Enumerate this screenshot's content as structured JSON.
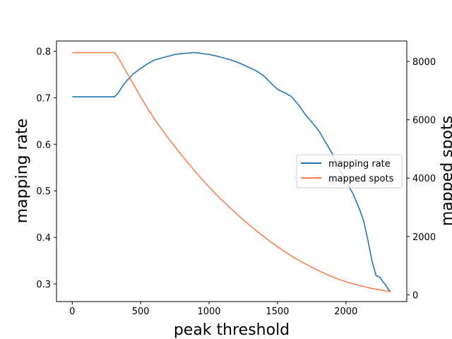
{
  "chart_data": {
    "type": "line",
    "title": "",
    "xlabel": "peak threshold",
    "ylabel": "mapping rate",
    "y2label": "mapped spots",
    "xlim": [
      -115,
      2445
    ],
    "ylim": [
      0.262,
      0.822
    ],
    "y2lim": [
      -230,
      8700
    ],
    "xticks": [
      0,
      500,
      1000,
      1500,
      2000
    ],
    "yticks": [
      0.3,
      0.4,
      0.5,
      0.6,
      0.7,
      0.8
    ],
    "y2ticks": [
      0,
      2000,
      4000,
      6000,
      8000
    ],
    "grid": false,
    "legend_position": "center-right",
    "series": [
      {
        "name": "mapping rate",
        "axis": "left",
        "color": "#1f77b4",
        "x": [
          0,
          100,
          200,
          300,
          310,
          340,
          370,
          400,
          450,
          500,
          550,
          600,
          650,
          700,
          750,
          800,
          850,
          900,
          950,
          1000,
          1050,
          1100,
          1150,
          1200,
          1250,
          1300,
          1350,
          1400,
          1450,
          1500,
          1550,
          1600,
          1650,
          1700,
          1750,
          1800,
          1850,
          1900,
          1950,
          2000,
          2050,
          2100,
          2130,
          2160,
          2190,
          2220,
          2250,
          2270,
          2290,
          2310,
          2325
        ],
        "y": [
          0.702,
          0.702,
          0.702,
          0.702,
          0.702,
          0.712,
          0.726,
          0.737,
          0.752,
          0.763,
          0.773,
          0.781,
          0.785,
          0.789,
          0.793,
          0.795,
          0.796,
          0.797,
          0.795,
          0.793,
          0.79,
          0.786,
          0.782,
          0.777,
          0.771,
          0.764,
          0.757,
          0.747,
          0.732,
          0.718,
          0.711,
          0.703,
          0.686,
          0.665,
          0.648,
          0.63,
          0.605,
          0.58,
          0.548,
          0.52,
          0.495,
          0.46,
          0.435,
          0.395,
          0.35,
          0.318,
          0.314,
          0.305,
          0.298,
          0.288,
          0.284
        ]
      },
      {
        "name": "mapped spots",
        "axis": "right",
        "color": "#ff7f50",
        "x": [
          0,
          100,
          200,
          300,
          310,
          340,
          370,
          400,
          450,
          500,
          550,
          600,
          650,
          700,
          750,
          800,
          850,
          900,
          950,
          1000,
          1050,
          1100,
          1150,
          1200,
          1250,
          1300,
          1350,
          1400,
          1450,
          1500,
          1550,
          1600,
          1650,
          1700,
          1750,
          1800,
          1850,
          1900,
          1950,
          2000,
          2050,
          2100,
          2150,
          2200,
          2250,
          2300,
          2325
        ],
        "y": [
          8300,
          8300,
          8300,
          8300,
          8300,
          8100,
          7850,
          7600,
          7200,
          6780,
          6400,
          6030,
          5700,
          5380,
          5080,
          4790,
          4500,
          4220,
          3950,
          3700,
          3450,
          3220,
          3000,
          2780,
          2570,
          2370,
          2180,
          2000,
          1820,
          1650,
          1490,
          1340,
          1200,
          1070,
          950,
          830,
          720,
          620,
          530,
          450,
          380,
          320,
          260,
          210,
          170,
          130,
          100
        ]
      }
    ]
  }
}
